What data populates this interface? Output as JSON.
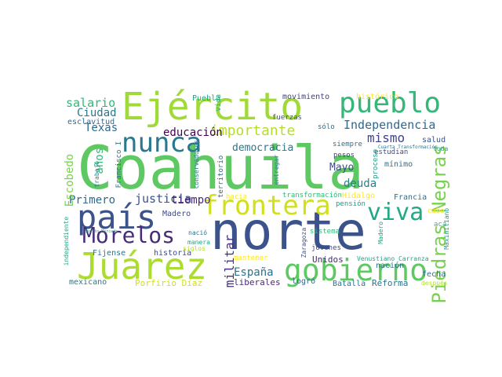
{
  "words": [
    {
      "text": "Coahuila",
      "color": "#5ec962"
    },
    {
      "text": "norte",
      "color": "#3b528b"
    },
    {
      "text": "país",
      "color": "#3b528b"
    },
    {
      "text": "Ejército",
      "color": "#a0da39"
    },
    {
      "text": "pueblo",
      "color": "#35b779"
    },
    {
      "text": "Juárez",
      "color": "#addc30"
    },
    {
      "text": "gobierno",
      "color": "#5ec962"
    },
    {
      "text": "frontera",
      "color": "#d0e11c"
    },
    {
      "text": "nunca",
      "color": "#2a788e"
    },
    {
      "text": "Morelos",
      "color": "#472c7a"
    },
    {
      "text": "viva",
      "color": "#22a884"
    },
    {
      "text": "Piedras Negras",
      "color": "#7ad151"
    },
    {
      "text": "Independencia",
      "color": "#31688e"
    },
    {
      "text": "importante",
      "color": "#b5de2b"
    },
    {
      "text": "salario",
      "color": "#35b779"
    },
    {
      "text": "Ciudad",
      "color": "#2a788e"
    },
    {
      "text": "Texas",
      "color": "#31688e"
    },
    {
      "text": "educación",
      "color": "#440154"
    },
    {
      "text": "democracia",
      "color": "#2a788e"
    },
    {
      "text": "mismo",
      "color": "#414487"
    },
    {
      "text": "Mayo",
      "color": "#3e4a89"
    },
    {
      "text": "deuda",
      "color": "#26828e"
    },
    {
      "text": "España",
      "color": "#2c728e"
    },
    {
      "text": "militar",
      "color": "#46327e"
    },
    {
      "text": "justicia",
      "color": "#3b528b"
    },
    {
      "text": "Primero",
      "color": "#31688e"
    },
    {
      "text": "tiempo",
      "color": "#482878"
    },
    {
      "text": "Escobedo",
      "color": "#7ad151"
    },
    {
      "text": "años",
      "color": "#35b779"
    },
    {
      "text": "movimiento",
      "color": "#414487"
    },
    {
      "text": "histórico",
      "color": "#fde725"
    },
    {
      "text": "esclavitud",
      "color": "#31688e"
    },
    {
      "text": "Puebla",
      "color": "#22a884"
    },
    {
      "text": "vida",
      "color": "#29af7f"
    },
    {
      "text": "fuerzas",
      "color": "#3e4a89"
    },
    {
      "text": "sólo",
      "color": "#2c728e"
    },
    {
      "text": "estudian",
      "color": "#3e4a89"
    },
    {
      "text": "salud",
      "color": "#3b528b"
    },
    {
      "text": "siempre",
      "color": "#2c728e"
    },
    {
      "text": "Cuarta Transformación",
      "color": "#2c728e"
    },
    {
      "text": "toda",
      "color": "#22a884"
    },
    {
      "text": "pesos",
      "color": "#414487"
    },
    {
      "text": "proceso",
      "color": "#1f9e89"
    },
    {
      "text": "mínimo",
      "color": "#2c728e"
    },
    {
      "text": "Francisco I",
      "color": "#2c728e"
    },
    {
      "text": "trabajo",
      "color": "#26828e"
    },
    {
      "text": "conservadores",
      "color": "#2a788e"
    },
    {
      "text": "territorio",
      "color": "#31688e"
    },
    {
      "text": "entregar",
      "color": "#26828e"
    },
    {
      "text": "hacia",
      "color": "#fde725"
    },
    {
      "text": "transformación",
      "color": "#35b779"
    },
    {
      "text": "Hidalgo",
      "color": "#fde725"
    },
    {
      "text": "Francia",
      "color": "#2c728e"
    },
    {
      "text": "pensión",
      "color": "#1f9e89"
    },
    {
      "text": "cabo",
      "color": "#fde725"
    },
    {
      "text": "Madero",
      "color": "#3e4a89"
    },
    {
      "text": "nació",
      "color": "#2c728e"
    },
    {
      "text": "manera",
      "color": "#22a884"
    },
    {
      "text": "siglos",
      "color": "#b5de2b"
    },
    {
      "text": "sistema",
      "color": "#35b779"
    },
    {
      "text": "jóvenes",
      "color": "#414487"
    },
    {
      "text": "acá",
      "color": "#35b779"
    },
    {
      "text": "Madero",
      "color": "#20a486"
    },
    {
      "text": "Maximiliano",
      "color": "#1f9e89"
    },
    {
      "text": "Zaragoza",
      "color": "#3b528b"
    },
    {
      "text": "independiente",
      "color": "#22a884"
    },
    {
      "text": "Benito Mercado",
      "color": "#20a486"
    },
    {
      "text": "Fijense",
      "color": "#2c728e"
    },
    {
      "text": "historia",
      "color": "#3e4a89"
    },
    {
      "text": "mantener",
      "color": "#fde725"
    },
    {
      "text": "Unidos",
      "color": "#482878"
    },
    {
      "text": "nación",
      "color": "#2c728e"
    },
    {
      "text": "Venustiano Carranza",
      "color": "#20a486"
    },
    {
      "text": "fecha",
      "color": "#2c728e"
    },
    {
      "text": "después",
      "color": "#b5de2b"
    },
    {
      "text": "mexicano",
      "color": "#2a788e"
    },
    {
      "text": "Porfirio Díaz",
      "color": "#d0e11c"
    },
    {
      "text": "liberales",
      "color": "#482878"
    },
    {
      "text": "logró",
      "color": "#31688e"
    },
    {
      "text": "Batalla",
      "color": "#2c728e"
    },
    {
      "text": "Reforma",
      "color": "#2c728e"
    }
  ]
}
